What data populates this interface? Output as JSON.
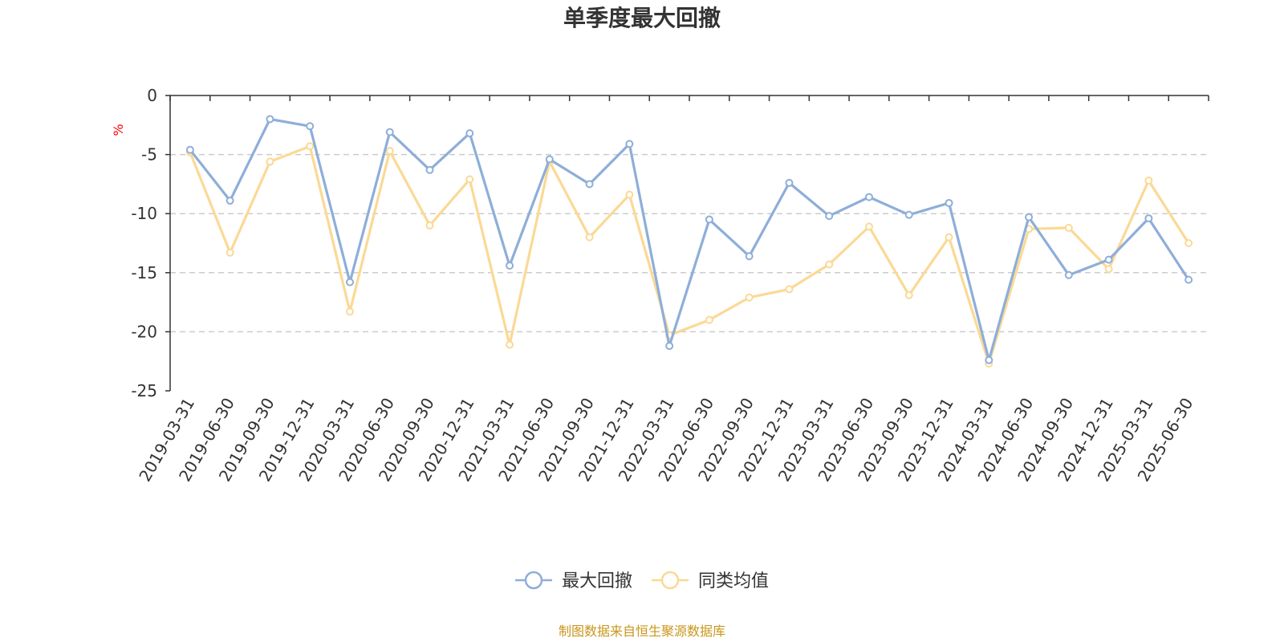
{
  "chart_data": {
    "type": "line",
    "title": "单季度最大回撤",
    "ylabel": "%",
    "ylim": [
      -25,
      0
    ],
    "yticks": [
      0,
      -5,
      -10,
      -15,
      -20,
      -25
    ],
    "ytick_labels": [
      "0",
      "-5",
      "-10",
      "-15",
      "-20",
      "-25"
    ],
    "grid": true,
    "legend_position": "bottom-center",
    "categories": [
      "2019-03-31",
      "2019-06-30",
      "2019-09-30",
      "2019-12-31",
      "2020-03-31",
      "2020-06-30",
      "2020-09-30",
      "2020-12-31",
      "2021-03-31",
      "2021-06-30",
      "2021-09-30",
      "2021-12-31",
      "2022-03-31",
      "2022-06-30",
      "2022-09-30",
      "2022-12-31",
      "2023-03-31",
      "2023-06-30",
      "2023-09-30",
      "2023-12-31",
      "2024-03-31",
      "2024-06-30",
      "2024-09-30",
      "2024-12-31",
      "2025-03-31",
      "2025-06-30"
    ],
    "series": [
      {
        "name": "最大回撤",
        "color": "#8eaed9",
        "values": [
          -4.6,
          -8.9,
          -2.0,
          -2.6,
          -15.8,
          -3.1,
          -6.3,
          -3.2,
          -14.4,
          -5.4,
          -7.5,
          -4.1,
          -21.2,
          -10.5,
          -13.6,
          -7.4,
          -10.2,
          -8.6,
          -10.1,
          -9.1,
          -22.4,
          -10.3,
          -15.2,
          -13.9,
          -10.4,
          -15.6
        ]
      },
      {
        "name": "同类均值",
        "color": "#fbd995",
        "values": [
          -4.8,
          -13.3,
          -5.6,
          -4.3,
          -18.3,
          -4.7,
          -11.0,
          -7.1,
          -21.1,
          -5.6,
          -12.0,
          -8.4,
          -20.3,
          -19.0,
          -17.1,
          -16.4,
          -14.3,
          -11.1,
          -16.9,
          -12.0,
          -22.7,
          -11.3,
          -11.2,
          -14.7,
          -7.2,
          -12.5
        ]
      }
    ],
    "axis_color": "#333333",
    "grid_color": "#cccccc",
    "unit_color": "#ff0000"
  },
  "source": {
    "text": "制图数据来自恒生聚源数据库",
    "color": "#c9961b"
  }
}
